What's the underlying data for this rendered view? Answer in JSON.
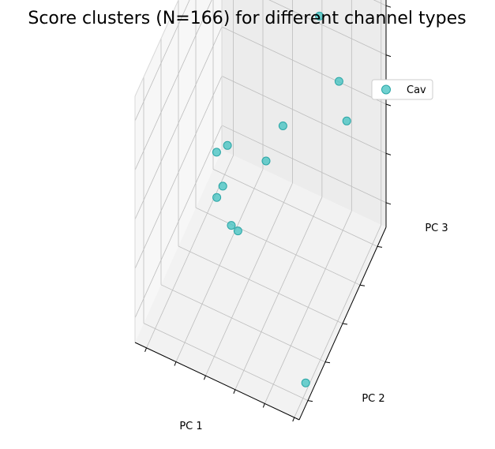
{
  "chart_data": {
    "type": "scatter",
    "projection": "3d",
    "title": "Score clusters (N=166) for different channel types",
    "xlabel": "PC 1",
    "ylabel": "PC 2",
    "zlabel": "PC 3",
    "grid": true,
    "tick_labels_shown": false,
    "legend": {
      "placement": "top-right",
      "entries": [
        "Cav"
      ]
    },
    "series": [
      {
        "name": "Cav",
        "color": "#3fc1c0",
        "edge_color": "#2aa6a6",
        "points": [
          {
            "x": 0.7,
            "y": 0.8,
            "z": 0.92
          },
          {
            "x": 0.93,
            "y": 0.68,
            "z": 0.66
          },
          {
            "x": 0.74,
            "y": 0.95,
            "z": 0.55
          },
          {
            "x": 0.52,
            "y": 0.72,
            "z": 0.48
          },
          {
            "x": 0.47,
            "y": 0.62,
            "z": 0.4
          },
          {
            "x": 0.18,
            "y": 0.6,
            "z": 0.36
          },
          {
            "x": 0.23,
            "y": 0.63,
            "z": 0.38
          },
          {
            "x": 0.36,
            "y": 0.33,
            "z": 0.49
          },
          {
            "x": 0.35,
            "y": 0.28,
            "z": 0.48
          },
          {
            "x": 0.28,
            "y": 0.58,
            "z": 0.11
          },
          {
            "x": 0.32,
            "y": 0.58,
            "z": 0.1
          },
          {
            "x": 0.96,
            "y": 0.15,
            "z": 0.02
          }
        ]
      }
    ]
  }
}
